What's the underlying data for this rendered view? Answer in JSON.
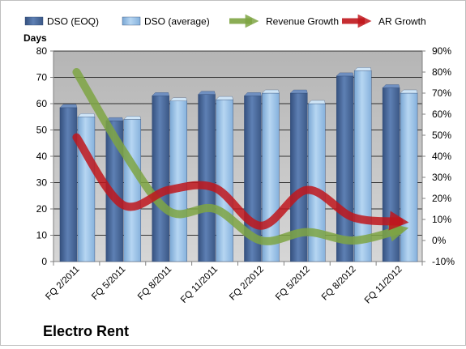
{
  "company": "Electro Rent",
  "chart_data": {
    "type": "bar",
    "y_axis_title": "Days",
    "categories": [
      "FQ 2/2011",
      "FQ 5/2011",
      "FQ 8/2011",
      "FQ 11/2011",
      "FQ 2/2012",
      "FQ 5/2012",
      "FQ 8/2012",
      "FQ 11/2012"
    ],
    "ylim": [
      0,
      80
    ],
    "y_ticks": [
      "0",
      "10",
      "20",
      "30",
      "40",
      "50",
      "60",
      "70",
      "80"
    ],
    "y2lim": [
      -10,
      90
    ],
    "y2_ticks": [
      "-10%",
      "0%",
      "10%",
      "20%",
      "30%",
      "40%",
      "50%",
      "60%",
      "70%",
      "80%",
      "90%"
    ],
    "grid": "horizontal",
    "legend": "top",
    "series": [
      {
        "name": "DSO (EOQ)",
        "type": "bar",
        "axis": "left",
        "color": "#4a6a9b",
        "values": [
          58.5,
          53.5,
          63,
          63.5,
          63,
          64,
          70.5,
          66
        ]
      },
      {
        "name": "DSO (average)",
        "type": "bar",
        "axis": "left",
        "color": "#9cc4e8",
        "values": [
          55,
          54,
          61,
          61.5,
          64,
          60,
          72.5,
          64
        ]
      },
      {
        "name": "Revenue Growth",
        "type": "line",
        "axis": "right",
        "color": "#7ea443",
        "values": [
          80,
          43,
          14,
          15,
          0,
          4,
          0,
          5
        ]
      },
      {
        "name": "AR Growth",
        "type": "line",
        "axis": "right",
        "color": "#c0161c",
        "values": [
          49,
          17,
          24,
          25,
          7,
          24,
          11,
          9
        ]
      }
    ]
  }
}
